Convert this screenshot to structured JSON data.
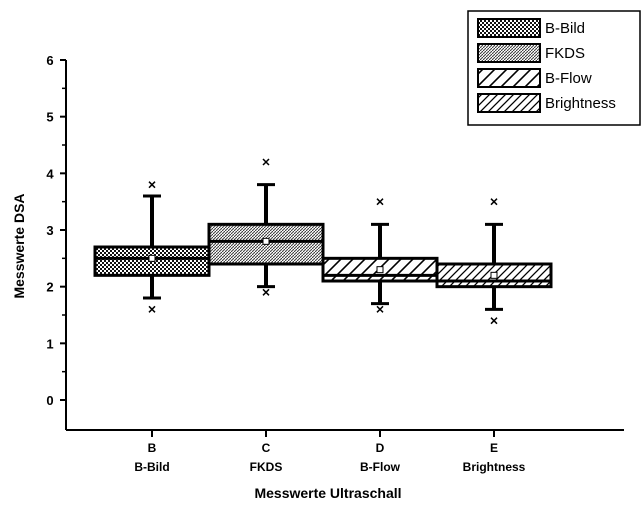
{
  "chart_data": {
    "type": "box",
    "ylabel": "Messwerte DSA",
    "xlabel": "Messwerte Ultraschall",
    "ylim": [
      0,
      6
    ],
    "yticks": [
      0,
      1,
      2,
      3,
      4,
      5,
      6
    ],
    "grid": false,
    "legend_position": "top-right",
    "categories": [
      {
        "letter": "B",
        "name": "B-Bild"
      },
      {
        "letter": "C",
        "name": "FKDS"
      },
      {
        "letter": "D",
        "name": "B-Flow"
      },
      {
        "letter": "E",
        "name": "Brightness"
      }
    ],
    "series": [
      {
        "name": "B-Bild",
        "pattern": "dots",
        "whisker_low": 1.8,
        "q1": 2.2,
        "median": 2.5,
        "q3": 2.7,
        "whisker_high": 3.6,
        "mean": 2.5,
        "outliers": [
          1.6,
          3.8
        ]
      },
      {
        "name": "FKDS",
        "pattern": "fine-diagonal",
        "whisker_low": 2.0,
        "q1": 2.4,
        "median": 2.8,
        "q3": 3.1,
        "whisker_high": 3.8,
        "mean": 2.8,
        "outliers": [
          1.9,
          4.2
        ]
      },
      {
        "name": "B-Flow",
        "pattern": "wide-diagonal",
        "whisker_low": 1.7,
        "q1": 2.1,
        "median": 2.2,
        "q3": 2.5,
        "whisker_high": 3.1,
        "mean": 2.3,
        "outliers": [
          1.6,
          3.5
        ]
      },
      {
        "name": "Brightness",
        "pattern": "striped-diagonal",
        "whisker_low": 1.6,
        "q1": 2.0,
        "median": 2.1,
        "q3": 2.4,
        "whisker_high": 3.1,
        "mean": 2.2,
        "outliers": [
          1.4,
          3.5
        ]
      }
    ]
  }
}
